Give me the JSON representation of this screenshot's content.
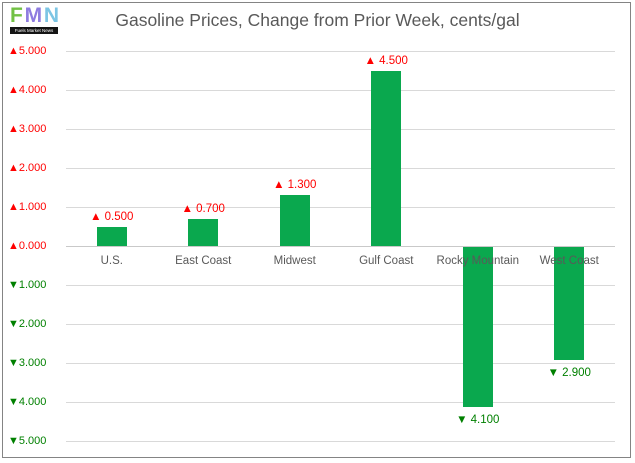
{
  "logo": {
    "letters": [
      {
        "char": "F",
        "color": "#72c145"
      },
      {
        "char": "M",
        "color": "#8e7ce0"
      },
      {
        "char": "N",
        "color": "#7cc5e4"
      }
    ],
    "tagline": "Fuels Market News",
    "bar_background": "#141414"
  },
  "title": "Gasoline Prices, Change from Prior Week, cents/gal",
  "chart_data": {
    "type": "bar",
    "title": "Gasoline Prices, Change from Prior Week, cents/gal",
    "categories": [
      "U.S.",
      "East Coast",
      "Midwest",
      "Gulf Coast",
      "Rocky Mountain",
      "West Coast"
    ],
    "values": [
      0.5,
      0.7,
      1.3,
      4.5,
      -4.1,
      -2.9
    ],
    "data_labels": [
      "▲ 0.500",
      "▲ 0.700",
      "▲ 1.300",
      "▲ 4.500",
      "▼ 4.100",
      "▼ 2.900"
    ],
    "y_ticks": [
      {
        "value": 5,
        "label": "▲5.000"
      },
      {
        "value": 4,
        "label": "▲4.000"
      },
      {
        "value": 3,
        "label": "▲3.000"
      },
      {
        "value": 2,
        "label": "▲2.000"
      },
      {
        "value": 1,
        "label": "▲1.000"
      },
      {
        "value": 0,
        "label": "▲0.000"
      },
      {
        "value": -1,
        "label": "▼1.000"
      },
      {
        "value": -2,
        "label": "▼2.000"
      },
      {
        "value": -3,
        "label": "▼3.000"
      },
      {
        "value": -4,
        "label": "▼4.000"
      },
      {
        "value": -5,
        "label": "▼5.000"
      }
    ],
    "ylim": [
      -5,
      5
    ],
    "xlabel": "",
    "ylabel": "",
    "grid": true,
    "legend": "none",
    "bar_color": "#0aa84e",
    "positive_color": "#ff0000",
    "negative_color": "#008000",
    "gridline_color": "#d9d9d9",
    "zero_line_color": "#c9c9c9",
    "axis_text_color": "#595959"
  }
}
